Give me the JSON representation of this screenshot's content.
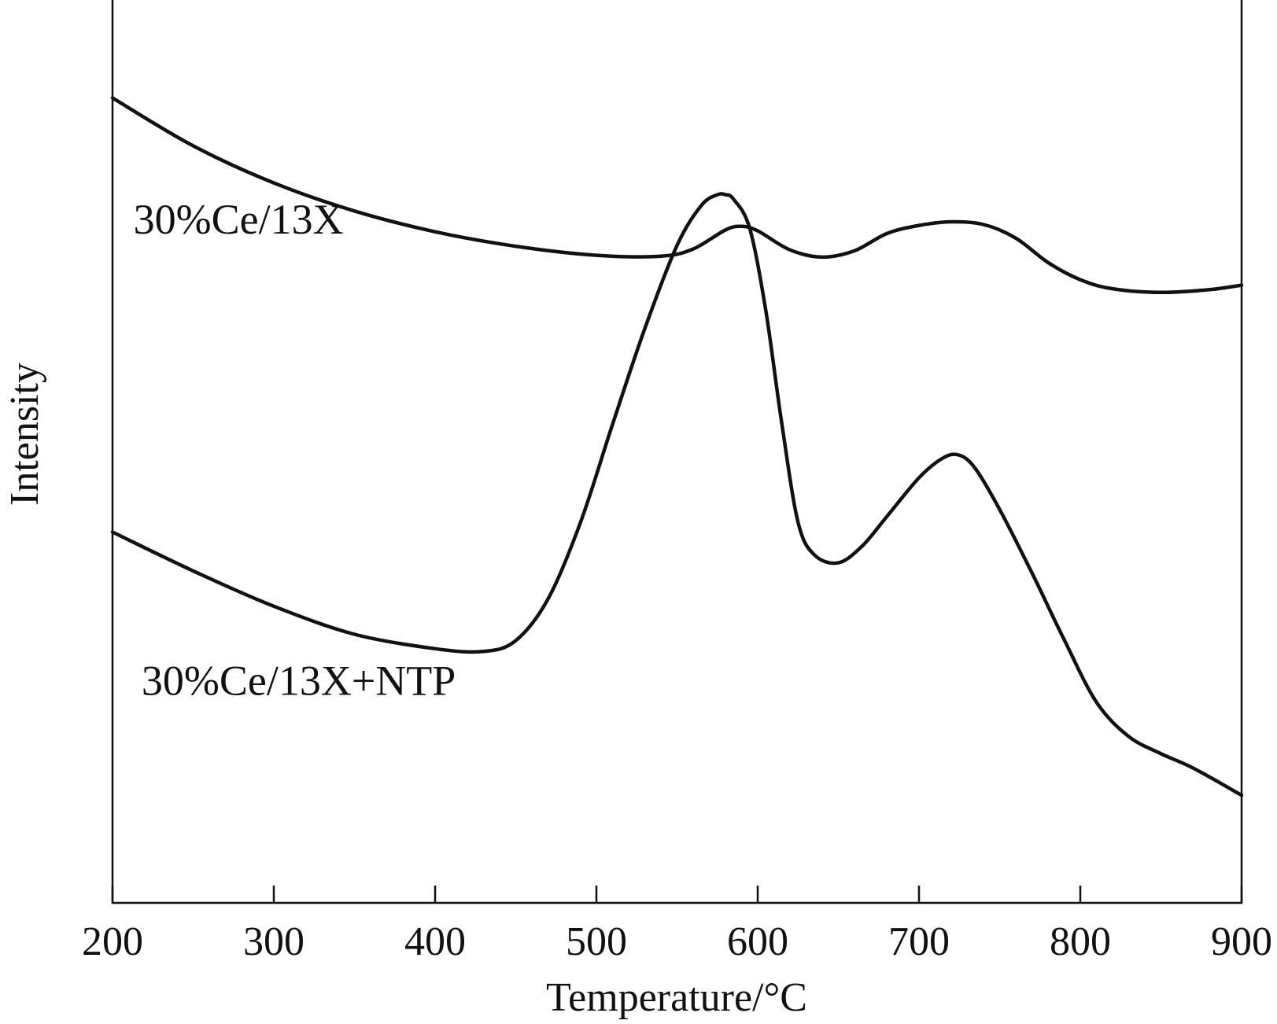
{
  "chart_data": {
    "type": "line",
    "title": "",
    "xlabel": "Temperature/°C",
    "ylabel": "Intensity",
    "xlim": [
      200,
      900
    ],
    "ylim": [
      0,
      100
    ],
    "xticks": [
      200,
      300,
      400,
      500,
      600,
      700,
      800,
      900
    ],
    "xtick_labels": [
      "200",
      "300",
      "400",
      "500",
      "600",
      "700",
      "800",
      "900"
    ],
    "y_tick_labels_shown": false,
    "grid": false,
    "legend": "none (series labelled inline)",
    "series": [
      {
        "name": "30%Ce/13X",
        "x": [
          200,
          250,
          300,
          350,
          400,
          450,
          500,
          540,
          560,
          580,
          590,
          600,
          620,
          640,
          660,
          680,
          700,
          720,
          740,
          760,
          780,
          800,
          820,
          850,
          880,
          900
        ],
        "y": [
          89.0,
          83.7,
          79.6,
          76.5,
          74.2,
          72.6,
          71.6,
          71.5,
          72.3,
          74.4,
          74.8,
          74.3,
          72.2,
          71.4,
          72.1,
          74.0,
          74.9,
          75.3,
          75.0,
          73.5,
          70.8,
          68.9,
          67.9,
          67.5,
          67.8,
          68.3
        ],
        "label_x": 213,
        "label_y": 74
      },
      {
        "name": "30%Ce/13X+NTP",
        "x": [
          200,
          250,
          300,
          350,
          400,
          430,
          450,
          470,
          490,
          510,
          530,
          550,
          565,
          575,
          580,
          585,
          595,
          605,
          615,
          625,
          635,
          650,
          665,
          680,
          700,
          715,
          725,
          735,
          750,
          770,
          790,
          810,
          830,
          850,
          870,
          900
        ],
        "y": [
          41.0,
          36.7,
          32.8,
          29.7,
          28.1,
          27.8,
          29.0,
          33.6,
          42.0,
          52.9,
          63.5,
          72.7,
          77.1,
          78.3,
          78.3,
          77.8,
          74.6,
          65.5,
          52.9,
          42.1,
          38.5,
          37.6,
          39.5,
          42.7,
          47.0,
          49.2,
          49.5,
          48.0,
          43.5,
          36.5,
          29.1,
          22.2,
          18.4,
          16.5,
          14.9,
          11.9
        ],
        "label_x": 218,
        "label_y": 23
      }
    ]
  }
}
